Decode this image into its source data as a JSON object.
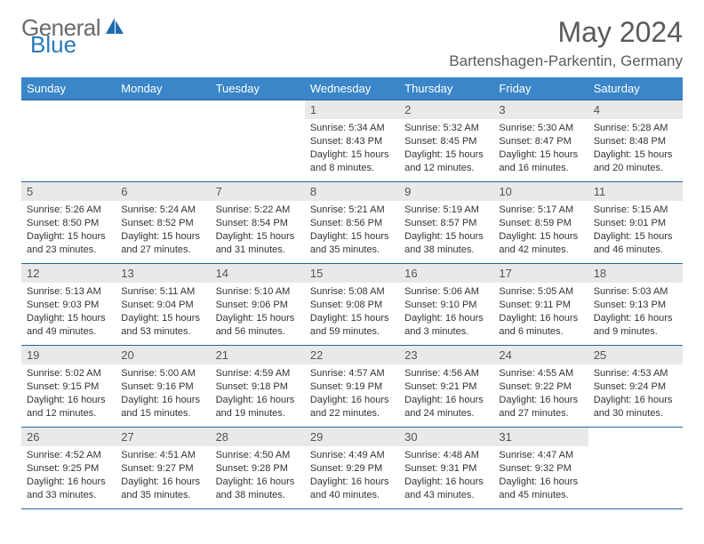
{
  "logo": {
    "part1": "General",
    "part2": "Blue"
  },
  "title": "May 2024",
  "location": "Bartenshagen-Parkentin, Germany",
  "colors": {
    "header_bg": "#3a86c8",
    "header_text": "#ffffff",
    "daynum_bg": "#e9e9e9",
    "border": "#2a6496",
    "logo_gray": "#6a6a6a",
    "logo_blue": "#2a7ab9"
  },
  "weekdays": [
    "Sunday",
    "Monday",
    "Tuesday",
    "Wednesday",
    "Thursday",
    "Friday",
    "Saturday"
  ],
  "weeks": [
    [
      null,
      null,
      null,
      {
        "n": "1",
        "sunrise": "5:34 AM",
        "sunset": "8:43 PM",
        "day": "15 hours and 8 minutes."
      },
      {
        "n": "2",
        "sunrise": "5:32 AM",
        "sunset": "8:45 PM",
        "day": "15 hours and 12 minutes."
      },
      {
        "n": "3",
        "sunrise": "5:30 AM",
        "sunset": "8:47 PM",
        "day": "15 hours and 16 minutes."
      },
      {
        "n": "4",
        "sunrise": "5:28 AM",
        "sunset": "8:48 PM",
        "day": "15 hours and 20 minutes."
      }
    ],
    [
      {
        "n": "5",
        "sunrise": "5:26 AM",
        "sunset": "8:50 PM",
        "day": "15 hours and 23 minutes."
      },
      {
        "n": "6",
        "sunrise": "5:24 AM",
        "sunset": "8:52 PM",
        "day": "15 hours and 27 minutes."
      },
      {
        "n": "7",
        "sunrise": "5:22 AM",
        "sunset": "8:54 PM",
        "day": "15 hours and 31 minutes."
      },
      {
        "n": "8",
        "sunrise": "5:21 AM",
        "sunset": "8:56 PM",
        "day": "15 hours and 35 minutes."
      },
      {
        "n": "9",
        "sunrise": "5:19 AM",
        "sunset": "8:57 PM",
        "day": "15 hours and 38 minutes."
      },
      {
        "n": "10",
        "sunrise": "5:17 AM",
        "sunset": "8:59 PM",
        "day": "15 hours and 42 minutes."
      },
      {
        "n": "11",
        "sunrise": "5:15 AM",
        "sunset": "9:01 PM",
        "day": "15 hours and 46 minutes."
      }
    ],
    [
      {
        "n": "12",
        "sunrise": "5:13 AM",
        "sunset": "9:03 PM",
        "day": "15 hours and 49 minutes."
      },
      {
        "n": "13",
        "sunrise": "5:11 AM",
        "sunset": "9:04 PM",
        "day": "15 hours and 53 minutes."
      },
      {
        "n": "14",
        "sunrise": "5:10 AM",
        "sunset": "9:06 PM",
        "day": "15 hours and 56 minutes."
      },
      {
        "n": "15",
        "sunrise": "5:08 AM",
        "sunset": "9:08 PM",
        "day": "15 hours and 59 minutes."
      },
      {
        "n": "16",
        "sunrise": "5:06 AM",
        "sunset": "9:10 PM",
        "day": "16 hours and 3 minutes."
      },
      {
        "n": "17",
        "sunrise": "5:05 AM",
        "sunset": "9:11 PM",
        "day": "16 hours and 6 minutes."
      },
      {
        "n": "18",
        "sunrise": "5:03 AM",
        "sunset": "9:13 PM",
        "day": "16 hours and 9 minutes."
      }
    ],
    [
      {
        "n": "19",
        "sunrise": "5:02 AM",
        "sunset": "9:15 PM",
        "day": "16 hours and 12 minutes."
      },
      {
        "n": "20",
        "sunrise": "5:00 AM",
        "sunset": "9:16 PM",
        "day": "16 hours and 15 minutes."
      },
      {
        "n": "21",
        "sunrise": "4:59 AM",
        "sunset": "9:18 PM",
        "day": "16 hours and 19 minutes."
      },
      {
        "n": "22",
        "sunrise": "4:57 AM",
        "sunset": "9:19 PM",
        "day": "16 hours and 22 minutes."
      },
      {
        "n": "23",
        "sunrise": "4:56 AM",
        "sunset": "9:21 PM",
        "day": "16 hours and 24 minutes."
      },
      {
        "n": "24",
        "sunrise": "4:55 AM",
        "sunset": "9:22 PM",
        "day": "16 hours and 27 minutes."
      },
      {
        "n": "25",
        "sunrise": "4:53 AM",
        "sunset": "9:24 PM",
        "day": "16 hours and 30 minutes."
      }
    ],
    [
      {
        "n": "26",
        "sunrise": "4:52 AM",
        "sunset": "9:25 PM",
        "day": "16 hours and 33 minutes."
      },
      {
        "n": "27",
        "sunrise": "4:51 AM",
        "sunset": "9:27 PM",
        "day": "16 hours and 35 minutes."
      },
      {
        "n": "28",
        "sunrise": "4:50 AM",
        "sunset": "9:28 PM",
        "day": "16 hours and 38 minutes."
      },
      {
        "n": "29",
        "sunrise": "4:49 AM",
        "sunset": "9:29 PM",
        "day": "16 hours and 40 minutes."
      },
      {
        "n": "30",
        "sunrise": "4:48 AM",
        "sunset": "9:31 PM",
        "day": "16 hours and 43 minutes."
      },
      {
        "n": "31",
        "sunrise": "4:47 AM",
        "sunset": "9:32 PM",
        "day": "16 hours and 45 minutes."
      },
      null
    ]
  ],
  "labels": {
    "sunrise": "Sunrise:",
    "sunset": "Sunset:",
    "daylight": "Daylight:"
  }
}
